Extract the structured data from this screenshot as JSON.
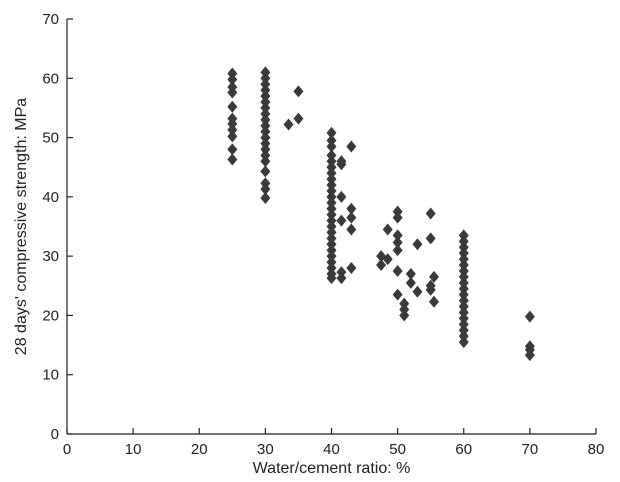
{
  "chart_data": {
    "type": "scatter",
    "xlabel": "Water/cement ratio: %",
    "ylabel": "28 days' compressive strength: MPa",
    "xlim": [
      0,
      80
    ],
    "ylim": [
      0,
      70
    ],
    "xticks": [
      0,
      10,
      20,
      30,
      40,
      50,
      60,
      70,
      80
    ],
    "yticks": [
      0,
      10,
      20,
      30,
      40,
      50,
      60,
      70
    ],
    "grid": false,
    "marker": "diamond",
    "marker_color": "#3a3a3a",
    "points": [
      {
        "x": 25,
        "y": 60.8
      },
      {
        "x": 25,
        "y": 59.8
      },
      {
        "x": 25,
        "y": 58.5
      },
      {
        "x": 25,
        "y": 57.6
      },
      {
        "x": 25,
        "y": 55.2
      },
      {
        "x": 25,
        "y": 53.2
      },
      {
        "x": 25,
        "y": 52.3
      },
      {
        "x": 25,
        "y": 51.3
      },
      {
        "x": 25,
        "y": 50.2
      },
      {
        "x": 25,
        "y": 48.0
      },
      {
        "x": 25,
        "y": 46.3
      },
      {
        "x": 30,
        "y": 61.0
      },
      {
        "x": 30,
        "y": 60.0
      },
      {
        "x": 30,
        "y": 59.0
      },
      {
        "x": 30,
        "y": 58.0
      },
      {
        "x": 30,
        "y": 57.0
      },
      {
        "x": 30,
        "y": 56.0
      },
      {
        "x": 30,
        "y": 55.0
      },
      {
        "x": 30,
        "y": 54.0
      },
      {
        "x": 30,
        "y": 53.0
      },
      {
        "x": 30,
        "y": 52.0
      },
      {
        "x": 30,
        "y": 51.0
      },
      {
        "x": 30,
        "y": 50.0
      },
      {
        "x": 30,
        "y": 49.0
      },
      {
        "x": 30,
        "y": 48.0
      },
      {
        "x": 30,
        "y": 47.0
      },
      {
        "x": 30,
        "y": 46.0
      },
      {
        "x": 30,
        "y": 44.3
      },
      {
        "x": 30,
        "y": 42.3
      },
      {
        "x": 30,
        "y": 41.3
      },
      {
        "x": 30,
        "y": 39.8
      },
      {
        "x": 33.5,
        "y": 52.2
      },
      {
        "x": 35,
        "y": 53.2
      },
      {
        "x": 35,
        "y": 57.8
      },
      {
        "x": 40,
        "y": 50.8
      },
      {
        "x": 40,
        "y": 49.5
      },
      {
        "x": 40,
        "y": 48.5
      },
      {
        "x": 40,
        "y": 47.0
      },
      {
        "x": 40,
        "y": 46.0
      },
      {
        "x": 40,
        "y": 45.0
      },
      {
        "x": 40,
        "y": 44.0
      },
      {
        "x": 40,
        "y": 43.0
      },
      {
        "x": 40,
        "y": 42.0
      },
      {
        "x": 40,
        "y": 41.0
      },
      {
        "x": 40,
        "y": 40.0
      },
      {
        "x": 40,
        "y": 39.0
      },
      {
        "x": 40,
        "y": 38.0
      },
      {
        "x": 40,
        "y": 37.0
      },
      {
        "x": 40,
        "y": 36.0
      },
      {
        "x": 40,
        "y": 35.0
      },
      {
        "x": 40,
        "y": 34.0
      },
      {
        "x": 40,
        "y": 33.0
      },
      {
        "x": 40,
        "y": 32.0
      },
      {
        "x": 40,
        "y": 31.0
      },
      {
        "x": 40,
        "y": 30.0
      },
      {
        "x": 40,
        "y": 29.0
      },
      {
        "x": 40,
        "y": 28.0
      },
      {
        "x": 40,
        "y": 27.0
      },
      {
        "x": 40,
        "y": 26.3
      },
      {
        "x": 41.5,
        "y": 46.0
      },
      {
        "x": 41.5,
        "y": 45.5
      },
      {
        "x": 41.5,
        "y": 40.0
      },
      {
        "x": 41.5,
        "y": 36.0
      },
      {
        "x": 41.5,
        "y": 27.3
      },
      {
        "x": 41.5,
        "y": 26.3
      },
      {
        "x": 43,
        "y": 48.5
      },
      {
        "x": 43,
        "y": 38.0
      },
      {
        "x": 43,
        "y": 36.5
      },
      {
        "x": 43,
        "y": 34.5
      },
      {
        "x": 43,
        "y": 28.0
      },
      {
        "x": 47.5,
        "y": 30.0
      },
      {
        "x": 47.5,
        "y": 28.5
      },
      {
        "x": 48.5,
        "y": 34.5
      },
      {
        "x": 48.5,
        "y": 29.5
      },
      {
        "x": 50,
        "y": 37.5
      },
      {
        "x": 50,
        "y": 36.5
      },
      {
        "x": 50,
        "y": 33.5
      },
      {
        "x": 50,
        "y": 32.3
      },
      {
        "x": 50,
        "y": 31.0
      },
      {
        "x": 50,
        "y": 27.5
      },
      {
        "x": 50,
        "y": 23.5
      },
      {
        "x": 51,
        "y": 22.0
      },
      {
        "x": 51,
        "y": 21.0
      },
      {
        "x": 51,
        "y": 20.0
      },
      {
        "x": 52,
        "y": 27.0
      },
      {
        "x": 52,
        "y": 25.5
      },
      {
        "x": 53,
        "y": 32.0
      },
      {
        "x": 53,
        "y": 24.0
      },
      {
        "x": 55,
        "y": 37.2
      },
      {
        "x": 55,
        "y": 33.0
      },
      {
        "x": 55,
        "y": 25.0
      },
      {
        "x": 55,
        "y": 24.3
      },
      {
        "x": 55.5,
        "y": 26.5
      },
      {
        "x": 55.5,
        "y": 22.3
      },
      {
        "x": 60,
        "y": 33.5
      },
      {
        "x": 60,
        "y": 32.5
      },
      {
        "x": 60,
        "y": 31.5
      },
      {
        "x": 60,
        "y": 30.5
      },
      {
        "x": 60,
        "y": 29.5
      },
      {
        "x": 60,
        "y": 28.5
      },
      {
        "x": 60,
        "y": 27.5
      },
      {
        "x": 60,
        "y": 26.5
      },
      {
        "x": 60,
        "y": 25.5
      },
      {
        "x": 60,
        "y": 24.5
      },
      {
        "x": 60,
        "y": 23.5
      },
      {
        "x": 60,
        "y": 22.5
      },
      {
        "x": 60,
        "y": 21.5
      },
      {
        "x": 60,
        "y": 20.5
      },
      {
        "x": 60,
        "y": 19.5
      },
      {
        "x": 60,
        "y": 18.5
      },
      {
        "x": 60,
        "y": 17.5
      },
      {
        "x": 60,
        "y": 16.5
      },
      {
        "x": 60,
        "y": 15.5
      },
      {
        "x": 70,
        "y": 19.8
      },
      {
        "x": 70,
        "y": 14.8
      },
      {
        "x": 70,
        "y": 14.2
      },
      {
        "x": 70,
        "y": 13.3
      }
    ]
  }
}
